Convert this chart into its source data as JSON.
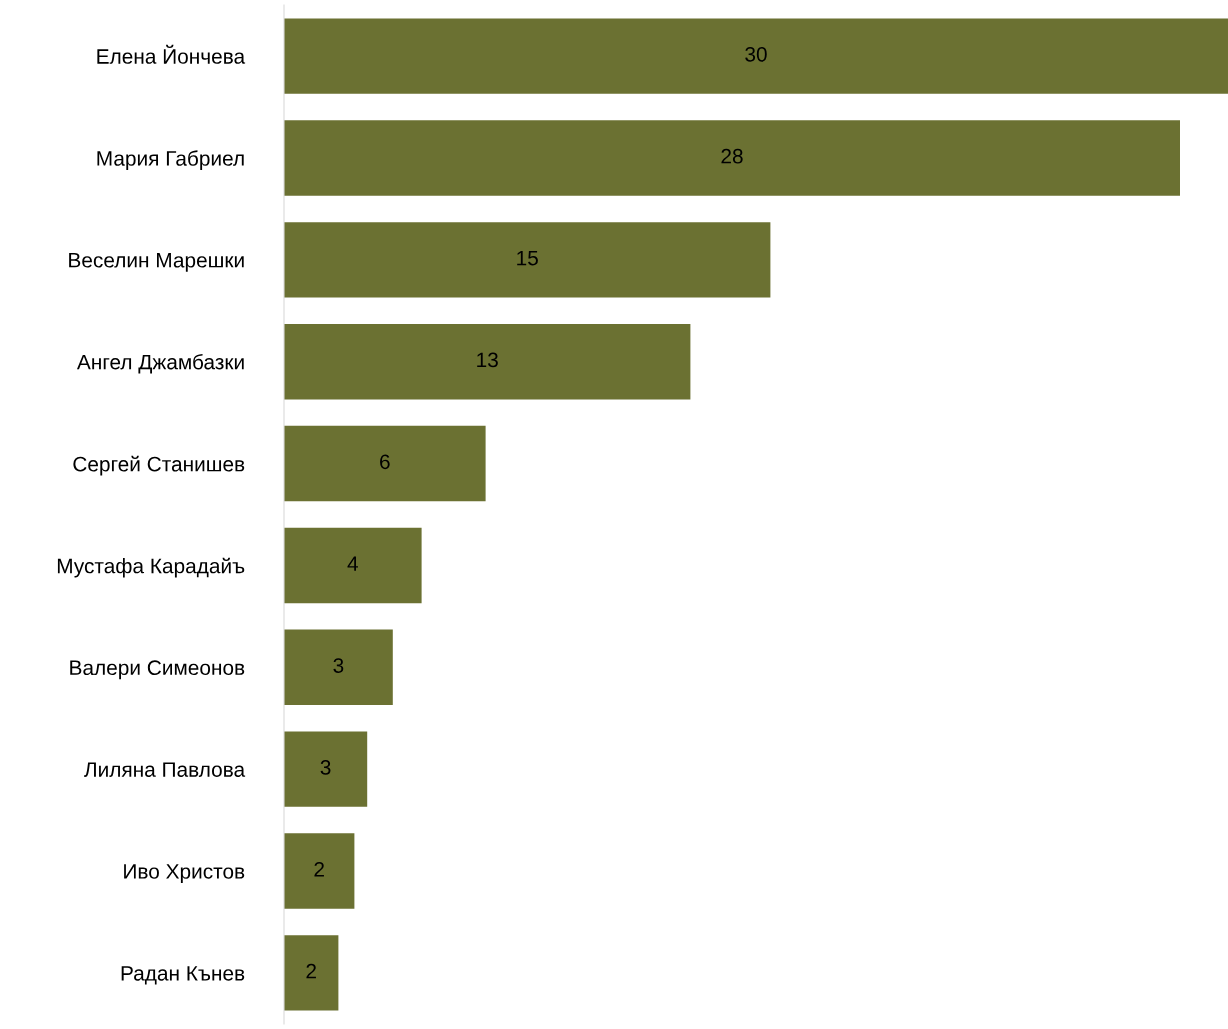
{
  "chart_data": {
    "type": "bar",
    "orientation": "horizontal",
    "categories": [
      "Елена Йончева",
      "Мария Габриел",
      "Веселин Марешки",
      "Ангел Джамбазки",
      "Сергей Станишев",
      "Мустафа Карадайъ",
      "Валери Симеонов",
      "Лиляна Павлова",
      "Иво Христов",
      "Радан Кънев"
    ],
    "values": [
      29.5,
      28.0,
      15.2,
      12.7,
      6.3,
      4.3,
      3.4,
      2.6,
      2.2,
      1.7
    ],
    "value_labels": [
      "30",
      "28",
      "15",
      "13",
      "6",
      "4",
      "3",
      "3",
      "2",
      "2"
    ],
    "color": "#6b7132",
    "grid": false,
    "legend": false
  }
}
